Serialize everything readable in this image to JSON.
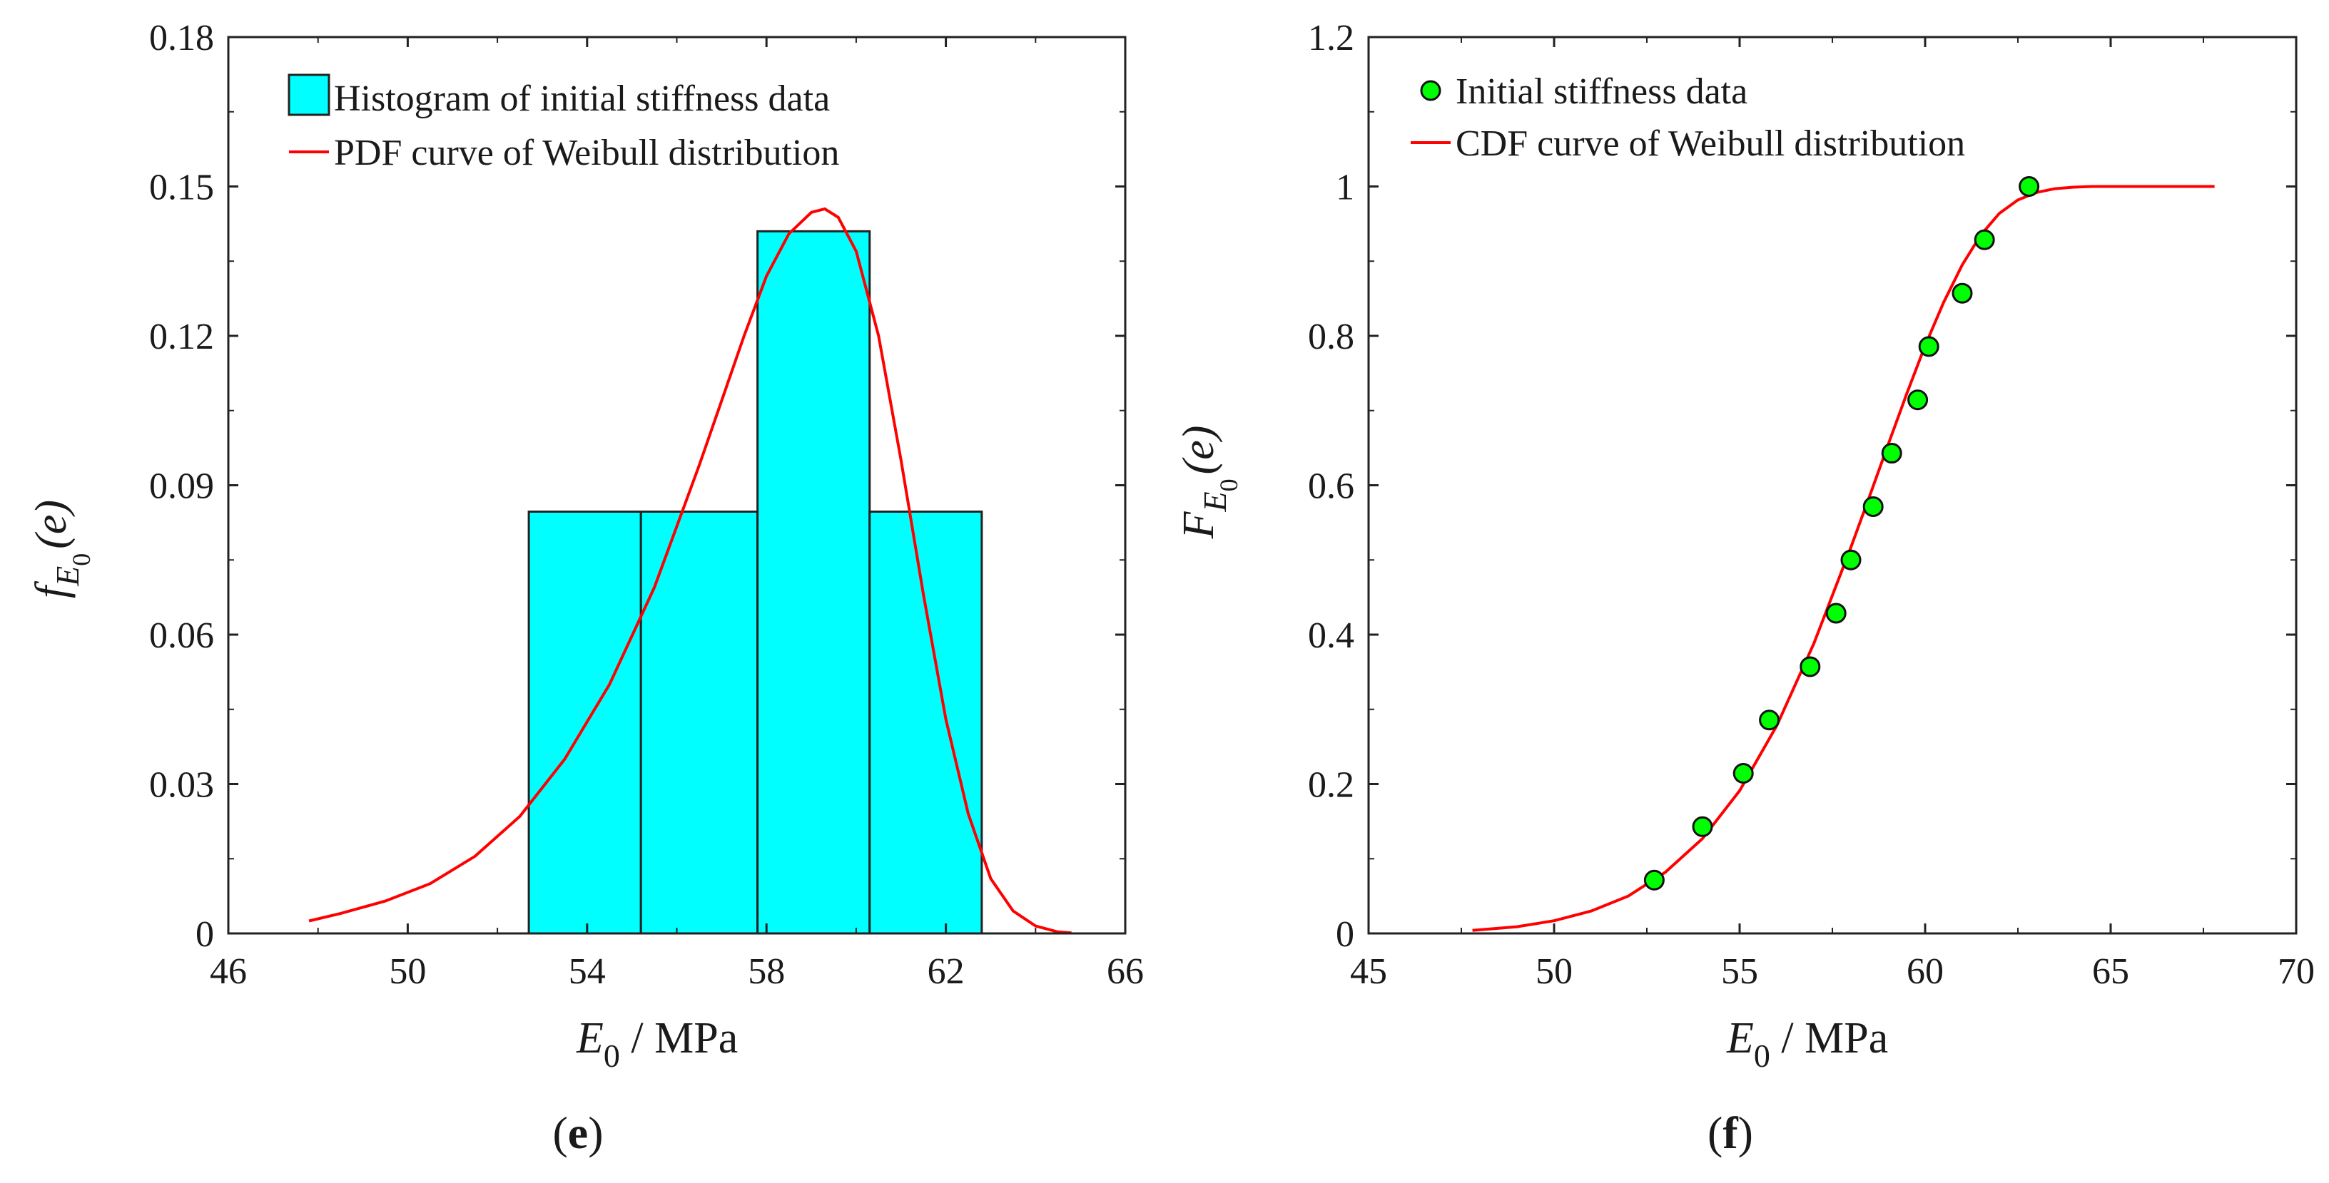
{
  "colors": {
    "histogram_fill": "#00ffff",
    "curve": "#ff0000",
    "marker": "#00ff00",
    "axis": "#222222"
  },
  "chart_data": [
    {
      "type": "bar",
      "subtype": "histogram-with-pdf",
      "panel_label": "e",
      "xlabel": {
        "symbol": "E",
        "subscript": "0",
        "unit": " / MPa"
      },
      "ylabel": {
        "symbol": "f",
        "subscript": "E",
        "subsubscript": "0",
        "arg": "(e)"
      },
      "xlim": [
        46,
        66
      ],
      "ylim": [
        0,
        0.18
      ],
      "xticks": [
        46,
        50,
        54,
        58,
        62,
        66
      ],
      "yticks": [
        0,
        0.03,
        0.06,
        0.09,
        0.12,
        0.15,
        0.18
      ],
      "ytick_labels": [
        "0",
        "0.03",
        "0.06",
        "0.09",
        "0.12",
        "0.15",
        "0.18"
      ],
      "xtick_labels": [
        "46",
        "50",
        "54",
        "58",
        "62",
        "66"
      ],
      "bins": [
        {
          "x0": 52.7,
          "x1": 55.2,
          "value": 0.0847
        },
        {
          "x0": 55.2,
          "x1": 57.8,
          "value": 0.0847
        },
        {
          "x0": 57.8,
          "x1": 60.3,
          "value": 0.141
        },
        {
          "x0": 60.3,
          "x1": 62.8,
          "value": 0.0847
        }
      ],
      "pdf_curve": {
        "x": [
          47.8,
          48.5,
          49.5,
          50.5,
          51.5,
          52.5,
          53.5,
          54.5,
          55.5,
          56.5,
          57.0,
          57.5,
          58.0,
          58.5,
          59.0,
          59.3,
          59.6,
          60.0,
          60.5,
          61.0,
          61.5,
          62.0,
          62.5,
          63.0,
          63.5,
          64.0,
          64.5,
          64.8
        ],
        "y": [
          0.0025,
          0.004,
          0.0065,
          0.01,
          0.0155,
          0.0235,
          0.035,
          0.05,
          0.0695,
          0.094,
          0.107,
          0.12,
          0.132,
          0.1405,
          0.1448,
          0.1455,
          0.1438,
          0.137,
          0.12,
          0.095,
          0.068,
          0.043,
          0.024,
          0.011,
          0.0045,
          0.0015,
          0.0003,
          0.0001
        ]
      },
      "legend": {
        "position": "top-left",
        "entries": [
          "Histogram of initial stiffness data",
          "PDF curve of Weibull distribution"
        ]
      }
    },
    {
      "type": "scatter",
      "subtype": "empirical-cdf-with-fitted-cdf",
      "panel_label": "f",
      "xlabel": {
        "symbol": "E",
        "subscript": "0",
        "unit": " / MPa"
      },
      "ylabel": {
        "symbol": "F",
        "subscript": "E",
        "subsubscript": "0",
        "arg": "(e)"
      },
      "xlim": [
        45,
        70
      ],
      "ylim": [
        0,
        1.2
      ],
      "xticks": [
        45,
        50,
        55,
        60,
        65,
        70
      ],
      "yticks": [
        0,
        0.2,
        0.4,
        0.6,
        0.8,
        1,
        1.2
      ],
      "xtick_labels": [
        "45",
        "50",
        "55",
        "60",
        "65",
        "70"
      ],
      "ytick_labels": [
        "0",
        "0.2",
        "0.4",
        "0.6",
        "0.8",
        "1",
        "1.2"
      ],
      "points": {
        "x": [
          52.7,
          54.0,
          55.1,
          55.8,
          56.9,
          57.6,
          58.0,
          58.6,
          59.1,
          59.8,
          60.1,
          61.0,
          61.6,
          62.8
        ],
        "y": [
          0.0714,
          0.1429,
          0.2143,
          0.2857,
          0.3571,
          0.4286,
          0.5,
          0.5714,
          0.6429,
          0.7143,
          0.7857,
          0.8571,
          0.9286,
          1.0
        ]
      },
      "cdf_curve": {
        "x": [
          47.8,
          49.0,
          50.0,
          51.0,
          52.0,
          53.0,
          54.0,
          55.0,
          56.0,
          57.0,
          58.0,
          58.5,
          59.0,
          59.5,
          60.0,
          60.5,
          61.0,
          61.5,
          62.0,
          62.5,
          63.0,
          63.5,
          64.0,
          64.5,
          65.0,
          66.0,
          67.0,
          67.8
        ],
        "y": [
          0.004,
          0.009,
          0.017,
          0.03,
          0.05,
          0.082,
          0.127,
          0.191,
          0.278,
          0.388,
          0.517,
          0.585,
          0.654,
          0.722,
          0.787,
          0.845,
          0.895,
          0.935,
          0.964,
          0.982,
          0.992,
          0.997,
          0.999,
          1.0,
          1.0,
          1.0,
          1.0,
          1.0
        ]
      },
      "legend": {
        "position": "top-left",
        "entries": [
          "Initial stiffness data",
          "CDF curve of Weibull distribution"
        ]
      }
    }
  ]
}
